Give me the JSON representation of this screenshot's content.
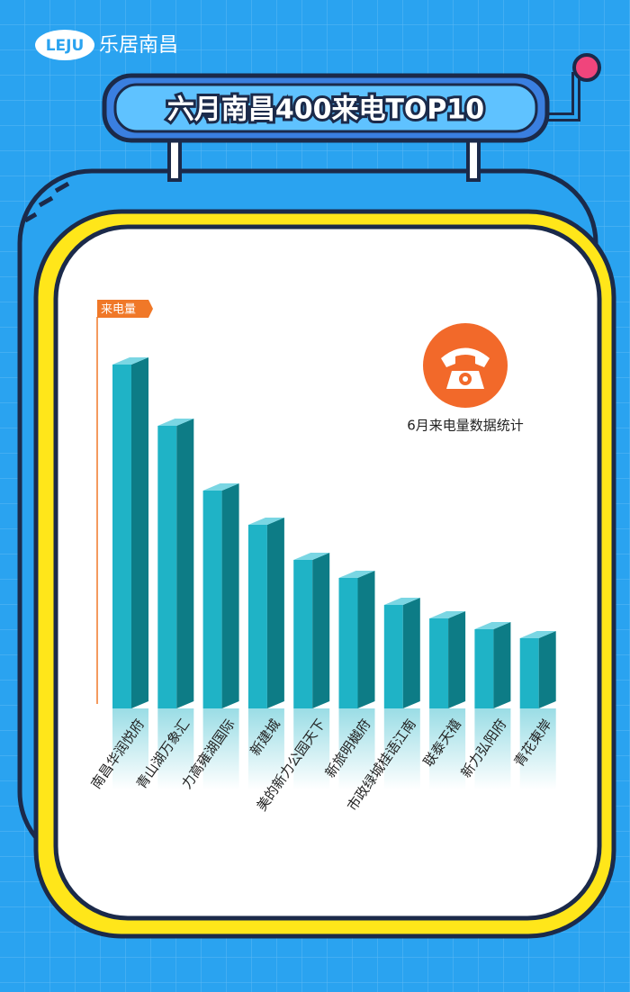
{
  "brand": {
    "logo": "LEJU",
    "name": "乐居南昌"
  },
  "chart_data": {
    "type": "bar",
    "title": "六月南昌400来电TOP10",
    "y_label": "来电量",
    "annotation": "6月来电量数据统计",
    "categories": [
      "南昌华润悦府",
      "青山湖万象汇",
      "力高雍湖国际",
      "新建城",
      "美的新力公园天下",
      "新旅明樾府",
      "市政绿城桂语江南",
      "联泰天禧",
      "新力弘阳府",
      "青花東岸"
    ],
    "values": [
      382,
      314,
      242,
      204,
      165,
      145,
      115,
      100,
      88,
      78
    ],
    "color": "#1fb3c6",
    "ylim": [
      0,
      400
    ]
  }
}
